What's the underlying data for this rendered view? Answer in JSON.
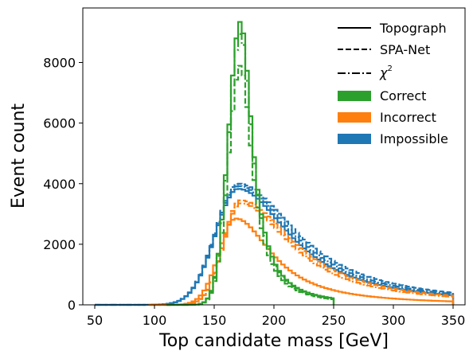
{
  "chart_data": {
    "type": "line",
    "subtype": "step-histogram",
    "title": "",
    "xlabel": "Top candidate mass [GeV]",
    "ylabel": "Event count",
    "xlim": [
      40,
      360
    ],
    "ylim": [
      0,
      9800
    ],
    "xticks": [
      50,
      100,
      150,
      200,
      250,
      300,
      350
    ],
    "yticks": [
      0,
      2000,
      4000,
      6000,
      8000
    ],
    "xtick_labels": [
      "50",
      "100",
      "150",
      "200",
      "250",
      "300",
      "350"
    ],
    "ytick_labels": [
      "0",
      "2000",
      "4000",
      "6000",
      "8000"
    ],
    "grid": false,
    "legend_position": "top-right",
    "bin_width": 3,
    "colors": {
      "correct": "#2ca02c",
      "incorrect": "#ff7f0e",
      "impossible": "#1f77b4"
    },
    "legend": {
      "styles": [
        {
          "label": "Topograph",
          "dash": "solid"
        },
        {
          "label": "SPA-Net",
          "dash": "dashed"
        },
        {
          "label": "χ",
          "superscript": "2",
          "dash": "dashdot"
        }
      ],
      "categories": [
        {
          "label": "Correct",
          "color": "#2ca02c"
        },
        {
          "label": "Incorrect",
          "color": "#ff7f0e"
        },
        {
          "label": "Impossible",
          "color": "#1f77b4"
        }
      ]
    },
    "series": [
      {
        "category": "impossible",
        "method": "SPA-Net",
        "dash": "dashed",
        "color": "#1f77b4",
        "x_range": [
          50,
          350
        ],
        "peak_x": 170,
        "peak_y": 4000,
        "sigma_left": 19,
        "tail": 60,
        "edge_y": 280
      },
      {
        "category": "impossible",
        "method": "χ2",
        "dash": "dashdot",
        "color": "#1f77b4",
        "x_range": [
          50,
          350
        ],
        "peak_x": 170,
        "peak_y": 3920,
        "sigma_left": 19,
        "tail": 57,
        "edge_y": 250
      },
      {
        "category": "impossible",
        "method": "Topograph",
        "dash": "solid",
        "color": "#1f77b4",
        "x_range": [
          50,
          350
        ],
        "peak_x": 170,
        "peak_y": 3830,
        "sigma_left": 19,
        "tail": 54,
        "edge_y": 220
      },
      {
        "category": "incorrect",
        "method": "SPA-Net",
        "dash": "dashed",
        "color": "#ff7f0e",
        "x_range": [
          95,
          350
        ],
        "peak_x": 172,
        "peak_y": 3450,
        "sigma_left": 14,
        "tail": 55,
        "edge_y": 150
      },
      {
        "category": "incorrect",
        "method": "χ2",
        "dash": "dashdot",
        "color": "#ff7f0e",
        "x_range": [
          95,
          350
        ],
        "peak_x": 172,
        "peak_y": 3350,
        "sigma_left": 14,
        "tail": 52,
        "edge_y": 120
      },
      {
        "category": "incorrect",
        "method": "Topograph",
        "dash": "solid",
        "color": "#ff7f0e",
        "x_range": [
          95,
          350
        ],
        "peak_x": 168,
        "peak_y": 2850,
        "sigma_left": 14,
        "tail": 37,
        "edge_y": 0
      },
      {
        "category": "correct",
        "method": "SPA-Net",
        "dash": "dashed",
        "color": "#2ca02c",
        "x_range": [
          110,
          250
        ],
        "peak_x": 172,
        "peak_y": 7900,
        "sigma_left": 10,
        "tail": 12,
        "edge_y": 0
      },
      {
        "category": "correct",
        "method": "χ2",
        "dash": "dashdot",
        "color": "#2ca02c",
        "x_range": [
          110,
          250
        ],
        "peak_x": 172,
        "peak_y": 8950,
        "sigma_left": 10,
        "tail": 12,
        "edge_y": 0
      },
      {
        "category": "correct",
        "method": "Topograph",
        "dash": "solid",
        "color": "#2ca02c",
        "x_range": [
          110,
          250
        ],
        "peak_x": 172,
        "peak_y": 9350,
        "sigma_left": 10,
        "tail": 12,
        "edge_y": 0
      }
    ]
  }
}
